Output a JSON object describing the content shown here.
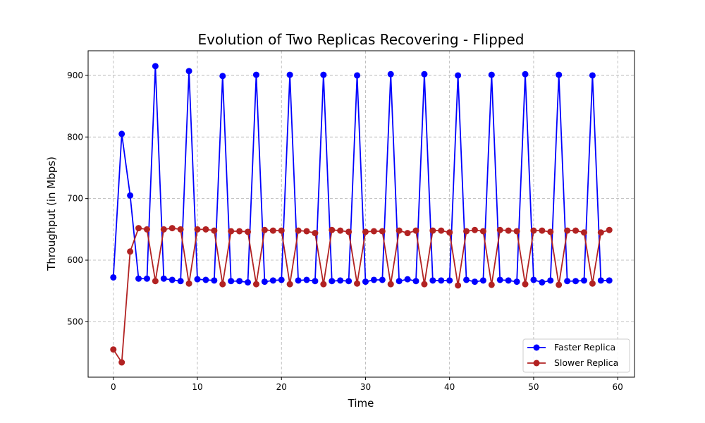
{
  "chart_data": {
    "type": "line",
    "title": "Evolution of Two Replicas Recovering - Flipped",
    "xlabel": "Time",
    "ylabel": "Throughput (in Mbps)",
    "xlim": [
      -3,
      62
    ],
    "ylim": [
      410,
      940
    ],
    "xticks": [
      0,
      10,
      20,
      30,
      40,
      50,
      60
    ],
    "yticks": [
      500,
      600,
      700,
      800,
      900
    ],
    "grid": true,
    "legend_position": "bottom-right",
    "x": [
      0,
      1,
      2,
      3,
      4,
      5,
      6,
      7,
      8,
      9,
      10,
      11,
      12,
      13,
      14,
      15,
      16,
      17,
      18,
      19,
      20,
      21,
      22,
      23,
      24,
      25,
      26,
      27,
      28,
      29,
      30,
      31,
      32,
      33,
      34,
      35,
      36,
      37,
      38,
      39,
      40,
      41,
      42,
      43,
      44,
      45,
      46,
      47,
      48,
      49,
      50,
      51,
      52,
      53,
      54,
      55,
      56,
      57,
      58,
      59
    ],
    "series": [
      {
        "name": "Faster Replica",
        "color": "#0000ff",
        "values": [
          572,
          805,
          705,
          570,
          570,
          915,
          570,
          568,
          566,
          907,
          569,
          568,
          567,
          899,
          566,
          566,
          564,
          901,
          565,
          567,
          568,
          901,
          567,
          568,
          566,
          901,
          566,
          567,
          566,
          900,
          565,
          568,
          568,
          902,
          566,
          569,
          566,
          902,
          567,
          567,
          567,
          900,
          568,
          565,
          567,
          901,
          568,
          567,
          565,
          902,
          568,
          564,
          567,
          901,
          566,
          566,
          567,
          900,
          567,
          567
        ]
      },
      {
        "name": "Slower Replica",
        "color": "#b22222",
        "values": [
          455,
          434,
          614,
          652,
          650,
          566,
          650,
          652,
          650,
          562,
          650,
          650,
          648,
          561,
          647,
          647,
          646,
          561,
          649,
          648,
          648,
          561,
          648,
          647,
          644,
          561,
          649,
          648,
          646,
          562,
          646,
          647,
          647,
          561,
          648,
          644,
          648,
          561,
          648,
          648,
          645,
          559,
          647,
          649,
          647,
          560,
          649,
          648,
          647,
          561,
          648,
          648,
          646,
          560,
          648,
          648,
          645,
          562,
          645,
          649
        ]
      }
    ]
  }
}
